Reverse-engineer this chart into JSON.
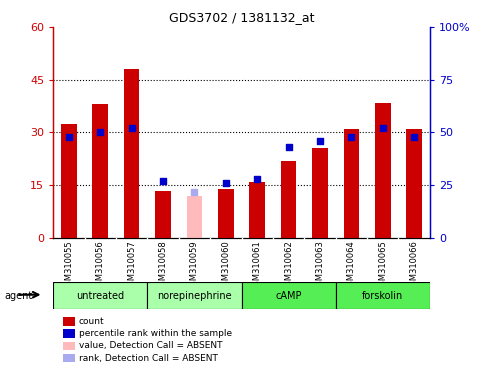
{
  "title": "GDS3702 / 1381132_at",
  "samples": [
    "GSM310055",
    "GSM310056",
    "GSM310057",
    "GSM310058",
    "GSM310059",
    "GSM310060",
    "GSM310061",
    "GSM310062",
    "GSM310063",
    "GSM310064",
    "GSM310065",
    "GSM310066"
  ],
  "red_bars": [
    32.5,
    38.0,
    48.0,
    13.5,
    0.0,
    14.0,
    16.0,
    22.0,
    25.5,
    31.0,
    38.5,
    31.0
  ],
  "pink_bars": [
    0,
    0,
    0,
    0,
    12.0,
    0,
    0,
    0,
    0,
    0,
    0,
    0
  ],
  "blue_dots": [
    48,
    50,
    52,
    27,
    0,
    26,
    28,
    43,
    46,
    48,
    52,
    48
  ],
  "lightblue_dots": [
    0,
    0,
    0,
    0,
    22,
    0,
    0,
    0,
    0,
    0,
    0,
    0
  ],
  "left_ylim": [
    0,
    60
  ],
  "right_ylim": [
    0,
    100
  ],
  "left_yticks": [
    0,
    15,
    30,
    45,
    60
  ],
  "right_yticks": [
    0,
    25,
    50,
    75,
    100
  ],
  "right_yticklabels": [
    "0",
    "25",
    "50",
    "75",
    "100%"
  ],
  "hlines": [
    15,
    30,
    45
  ],
  "groups": [
    {
      "label": "untreated",
      "start": 0,
      "end": 2,
      "color": "#aaffaa"
    },
    {
      "label": "norepinephrine",
      "start": 3,
      "end": 5,
      "color": "#aaffaa"
    },
    {
      "label": "cAMP",
      "start": 6,
      "end": 8,
      "color": "#55ee55"
    },
    {
      "label": "forskolin",
      "start": 9,
      "end": 11,
      "color": "#55ee55"
    }
  ],
  "bar_color": "#cc0000",
  "pink_color": "#ffbbbb",
  "blue_dot_color": "#0000cc",
  "lightblue_dot_color": "#aaaaee",
  "plot_bg": "#ffffff",
  "tick_bg": "#dddddd",
  "legend_items": [
    {
      "label": "count",
      "color": "#cc0000"
    },
    {
      "label": "percentile rank within the sample",
      "color": "#0000cc"
    },
    {
      "label": "value, Detection Call = ABSENT",
      "color": "#ffbbbb"
    },
    {
      "label": "rank, Detection Call = ABSENT",
      "color": "#aaaaee"
    }
  ]
}
